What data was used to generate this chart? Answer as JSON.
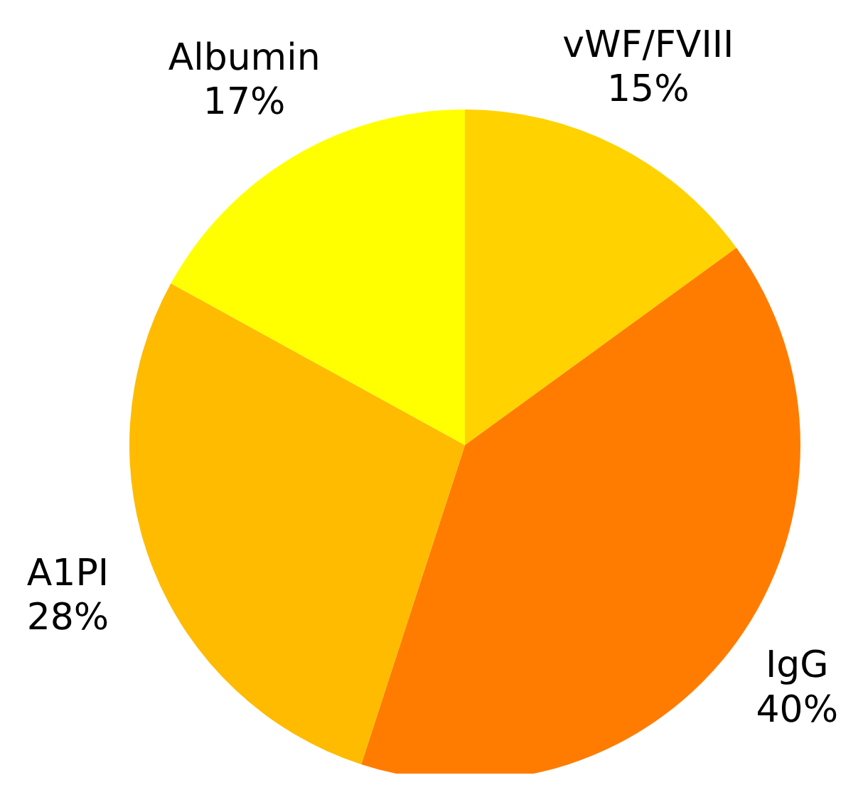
{
  "chart_data": {
    "type": "pie",
    "categories": [
      "vWF/FVIII",
      "IgG",
      "A1PI",
      "Albumin"
    ],
    "values": [
      15,
      40,
      28,
      17
    ],
    "value_labels": [
      "15%",
      "40%",
      "28%",
      "17%"
    ],
    "colors": [
      "#ffd200",
      "#ff7c00",
      "#ffbb00",
      "#ffff00"
    ]
  }
}
